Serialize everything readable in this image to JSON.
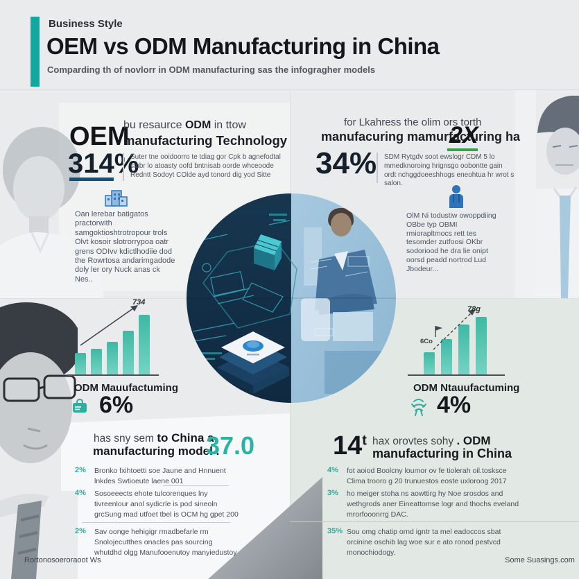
{
  "colors": {
    "accent_teal": "#14a79d",
    "bar_teal": "#3db9a4",
    "stat_underline": "#1d4d70",
    "green_underline": "#3f9e4c",
    "icon_blue": "#2f74b8",
    "big_teal": "#29b3a2"
  },
  "header": {
    "kicker": "Business Style",
    "title": "OEM vs ODM Manufacturing in China",
    "subtitle": "Comparding th of novlorr in ODM manufacturing sas the infogragher models"
  },
  "top_left": {
    "heading": "OEM",
    "sub1a": "bu resaurce ",
    "sub1b": "ODM",
    "sub1c": " in ttow",
    "sub2": "manufacturing Technology",
    "stat": "314%",
    "note": "Suter tne ooidoorro te tdiag gor Cpk b agnefodtal slubr lo atoasty oofd bntnisab oorde whceoode Redntt Sodoyt COlde ayd tonord dig yod Sitte",
    "paragraph": "Oan lerebar batigatos practorwith samgoktioshtrotropour trols Olvt kosoir slotrorrypoa oatr grens ODIvv kdictlhodiie dod the Rowrtosa andarimgadode doly ler ory Nuck anas ck Nes.."
  },
  "top_right": {
    "h1": "for Lkahress the olim ors torth",
    "h2": "manufacuring mamurfacturing ha",
    "hx": "2X",
    "stat": "34%",
    "note": "SDM Rytgdv soot ewslogr CDM 5 lo mmedknoroing hrignsgo oobontte gain ordt nchggdoeeshhogs eneohtua hr wrot s salon.",
    "paragraph": "OlM Ni todustiw owoppdiing OBbe typ OBMI rmiorapltmocs rett tes tesomder zutfoosi OKbr sodoriood he dra lie onipt oorsd peadd nortrod Lud Jbodeur..."
  },
  "bottom_left": {
    "stat": "6%",
    "hl1a": "has sny sem ",
    "hl1b": "to China a",
    "hl2": "manufacturing model .",
    "big": "37.0",
    "bullets": [
      {
        "pct": "2%",
        "text": "Bronko fxihtoetti soe Jaune and Hnnuent lnkdes Swtioeute laene 001"
      },
      {
        "pct": "4%",
        "text": "Sosoeeects ehote tulcorenques lny tivreenlour anol sydicrle is pod sineoln grcSung mad utfoet tbel is OCM hg gpet 200"
      },
      {
        "pct": "2%",
        "text": "Sav oonge hehigigr rmadbefarle rm Snolojecutthes onacles pas sourcing whutdhd olgg Manufooenutoy manyiedustoy"
      }
    ],
    "footer": "Rortonosoeroraoot Ws"
  },
  "bottom_right": {
    "stat": "4%",
    "big": "14",
    "big_sup": "t",
    "hl1a": "hax orovtes sohy ",
    "hl1b": ". ODM",
    "hl2": "manufacturing in China",
    "bullets": [
      {
        "pct": "4%",
        "text": "fot aoiod Boolcny loumor ov fe tiolerah oil.tosksce Clima trooro g 20 trunuestos eoste uxloroog 2017"
      },
      {
        "pct": "3%",
        "text": "ho meiger stoha ns aowttirg hy Noe srosdos and wethgrods aner Eineattomse logr and thochs eveland mrorfooonrrg DAC."
      },
      {
        "pct": "35%",
        "text": "Sou omg chatip ornd igntr ta mel eadoccos sbat orcinine oschib lag woe sur e ato ronod pestvcd monochiodogy."
      }
    ],
    "footer": "Some Suasings.com"
  },
  "chart_data": [
    {
      "type": "bar",
      "title": "ODM Mauufactuming",
      "categories": [
        "",
        "",
        "",
        "",
        ""
      ],
      "values": [
        31,
        37,
        47,
        63,
        86
      ],
      "ylabel": "",
      "xlabel": "",
      "annotation": "734",
      "legend": "none",
      "grid": false,
      "note": "values are relative bar heights, no axis labels shown"
    },
    {
      "type": "bar",
      "title": "ODM Ntauufactuming",
      "categories": [
        "",
        "",
        "",
        ""
      ],
      "values": [
        32,
        51,
        72,
        83
      ],
      "ylabel": "",
      "xlabel": "",
      "annotation": "78g",
      "annotation2": "6Co",
      "legend": "none",
      "grid": false,
      "note": "values are relative bar heights, no axis labels shown"
    }
  ]
}
